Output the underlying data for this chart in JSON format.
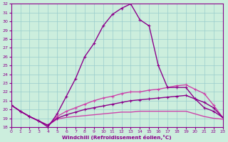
{
  "xlabel": "Windchill (Refroidissement éolien,°C)",
  "x": [
    0,
    1,
    2,
    3,
    4,
    5,
    6,
    7,
    8,
    9,
    10,
    11,
    12,
    13,
    14,
    15,
    16,
    17,
    18,
    19,
    20,
    21,
    22,
    23
  ],
  "line_main": [
    20.5,
    19.8,
    19.2,
    18.7,
    18.0,
    19.5,
    21.5,
    23.5,
    26.0,
    27.5,
    29.5,
    30.8,
    31.5,
    32.0,
    30.2,
    29.5,
    25.0,
    22.5,
    22.5,
    22.5,
    21.2,
    20.2,
    19.8,
    19.1
  ],
  "line_mid1": [
    20.5,
    19.8,
    19.2,
    18.7,
    18.2,
    19.2,
    19.8,
    20.2,
    20.6,
    21.0,
    21.3,
    21.5,
    21.8,
    22.0,
    22.0,
    22.2,
    22.3,
    22.5,
    22.7,
    22.8,
    22.3,
    21.8,
    20.5,
    19.1
  ],
  "line_mid2": [
    20.5,
    19.8,
    19.2,
    18.7,
    18.2,
    19.0,
    19.4,
    19.7,
    20.0,
    20.2,
    20.4,
    20.6,
    20.8,
    21.0,
    21.1,
    21.2,
    21.3,
    21.4,
    21.5,
    21.6,
    21.2,
    20.8,
    20.2,
    19.1
  ],
  "line_flat": [
    20.5,
    19.8,
    19.2,
    18.7,
    18.2,
    18.9,
    19.1,
    19.2,
    19.3,
    19.4,
    19.5,
    19.6,
    19.7,
    19.7,
    19.8,
    19.8,
    19.8,
    19.8,
    19.8,
    19.8,
    19.5,
    19.2,
    19.0,
    18.9
  ],
  "color_dark": "#8b008b",
  "color_light": "#cc44aa",
  "bg_color": "#cceedd",
  "grid_color": "#99cccc",
  "ylim": [
    18,
    32
  ],
  "xlim": [
    0,
    23
  ],
  "yticks": [
    18,
    19,
    20,
    21,
    22,
    23,
    24,
    25,
    26,
    27,
    28,
    29,
    30,
    31,
    32
  ],
  "xticks": [
    0,
    1,
    2,
    3,
    4,
    5,
    6,
    7,
    8,
    9,
    10,
    11,
    12,
    13,
    14,
    15,
    16,
    17,
    18,
    19,
    20,
    21,
    22,
    23
  ]
}
